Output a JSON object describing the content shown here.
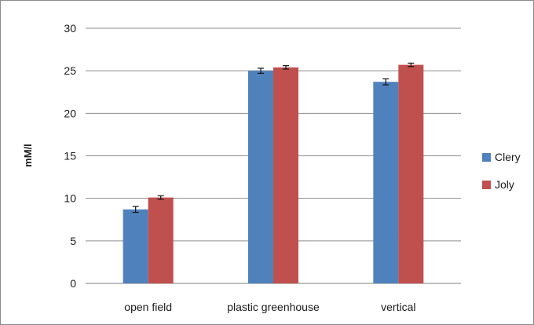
{
  "chart_data": {
    "type": "bar",
    "categories": [
      "open field",
      "plastic greenhouse",
      "vertical"
    ],
    "series": [
      {
        "name": "Clery",
        "color": "#4f81bd",
        "values": [
          8.7,
          25.0,
          23.7
        ],
        "errors": [
          0.35,
          0.3,
          0.35
        ]
      },
      {
        "name": "Joly",
        "color": "#c0504d",
        "values": [
          10.1,
          25.4,
          25.7
        ],
        "errors": [
          0.2,
          0.2,
          0.2
        ]
      }
    ],
    "ylabel": "mM/l",
    "ylim": [
      0,
      30
    ],
    "yticks": [
      "0",
      "5",
      "10",
      "15",
      "20",
      "25",
      "30"
    ],
    "grid": true,
    "legend_position": "right"
  }
}
